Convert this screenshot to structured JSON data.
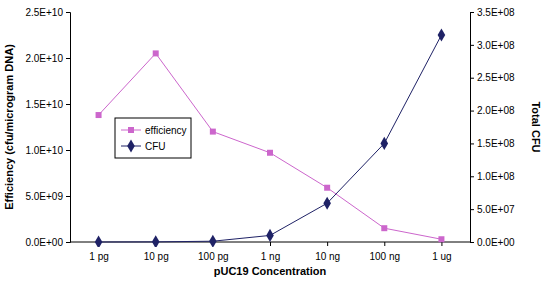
{
  "chart_data": {
    "type": "line",
    "x_label": "pUC19 Concentration",
    "y_label": "Efficiency (cfu/microgram DNA)",
    "y2_label": "Total CFU",
    "categories": [
      "1 pg",
      "10 pg",
      "100 pg",
      "1 ng",
      "10 ng",
      "100 ng",
      "1 ug"
    ],
    "series": [
      {
        "name": "efficiency",
        "color": "#cc66cc",
        "marker": "square",
        "values": [
          13800000000,
          20500000000,
          12000000000,
          9700000000,
          5900000000,
          1500000000,
          300000000
        ]
      },
      {
        "name": "CFU",
        "color": "#1f2266",
        "marker": "diamond",
        "axis": "y2",
        "values": [
          14000,
          200000,
          1200000,
          10000000,
          59000000,
          150000000,
          315000000
        ]
      }
    ],
    "ylim": [
      0,
      25000000000
    ],
    "yticks": [
      {
        "value": 0,
        "label": "0.0E+00"
      },
      {
        "value": 5000000000,
        "label": "5.0E+09"
      },
      {
        "value": 10000000000,
        "label": "1.0E+10"
      },
      {
        "value": 15000000000,
        "label": "1.5E+10"
      },
      {
        "value": 20000000000,
        "label": "2.0E+10"
      },
      {
        "value": 25000000000,
        "label": "2.5E+10"
      }
    ],
    "y2lim": [
      0,
      350000000
    ],
    "y2ticks": [
      {
        "value": 0,
        "label": "0.0E+00"
      },
      {
        "value": 50000000,
        "label": "5.0E+07"
      },
      {
        "value": 100000000,
        "label": "1.0E+08"
      },
      {
        "value": 150000000,
        "label": "1.5E+08"
      },
      {
        "value": 200000000,
        "label": "2.0E+08"
      },
      {
        "value": 250000000,
        "label": "2.5E+08"
      },
      {
        "value": 300000000,
        "label": "3.0E+08"
      },
      {
        "value": 350000000,
        "label": "3.5E+08"
      }
    ],
    "legend": "left"
  }
}
